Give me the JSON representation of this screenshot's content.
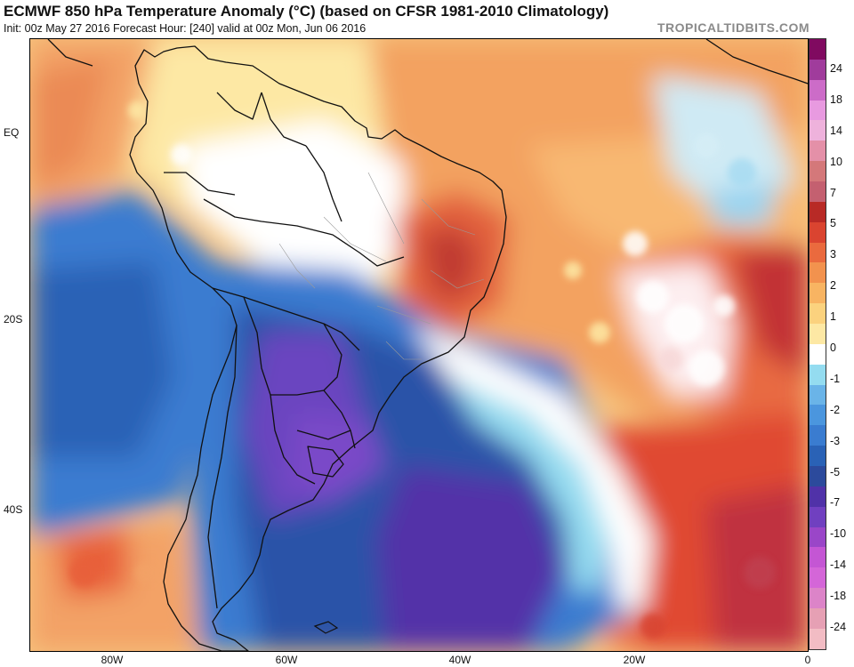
{
  "header": {
    "title": "ECMWF 850 hPa Temperature Anomaly (°C) (based on CFSR 1981-2010 Climatology)",
    "subtitle": "Init: 00z May 27 2016   Forecast Hour: [240]   valid at 00z Mon, Jun 06 2016",
    "watermark": "TROPICALTIDBITS.COM"
  },
  "axes": {
    "latitude_labels": [
      "EQ",
      "20S",
      "40S"
    ],
    "longitude_labels": [
      "80W",
      "60W",
      "40W",
      "20W",
      "0"
    ]
  },
  "colorbar": {
    "labels": [
      "24",
      "18",
      "14",
      "10",
      "7",
      "5",
      "3",
      "2",
      "1",
      "0",
      "-1",
      "-2",
      "-3",
      "-5",
      "-7",
      "-10",
      "-14",
      "-18",
      "-24"
    ],
    "colors": [
      "#f2bcc4",
      "#e6a0b4",
      "#dc84c8",
      "#d466d8",
      "#c456d4",
      "#9a46c8",
      "#7040c0",
      "#5032a8",
      "#2c4a9c",
      "#2a62b6",
      "#3a7cd0",
      "#4b96de",
      "#6ab4e8",
      "#94dcf0",
      "#ffffff",
      "#fde8a4",
      "#fbd27e",
      "#f8b462",
      "#f2924e",
      "#ea6a3e",
      "#da4430",
      "#b82a26",
      "#c46070",
      "#d4787a",
      "#e490a8",
      "#eeb2dc",
      "#e89ae0",
      "#cc6cc8",
      "#a03c9c",
      "#800a60"
    ]
  },
  "map": {
    "region": "South America and South Atlantic",
    "colors": {
      "land_outline": "#111111",
      "warm_light": "#fde8a4",
      "warm_mid": "#f5a86a",
      "warm_strong": "#e8603a",
      "warm_max": "#c03030",
      "neutral": "#ffffff",
      "cool_light": "#94dcf0",
      "cool_mid": "#3a7cd0",
      "cool_strong": "#2a52a8",
      "cool_max": "#6a44c0"
    }
  }
}
